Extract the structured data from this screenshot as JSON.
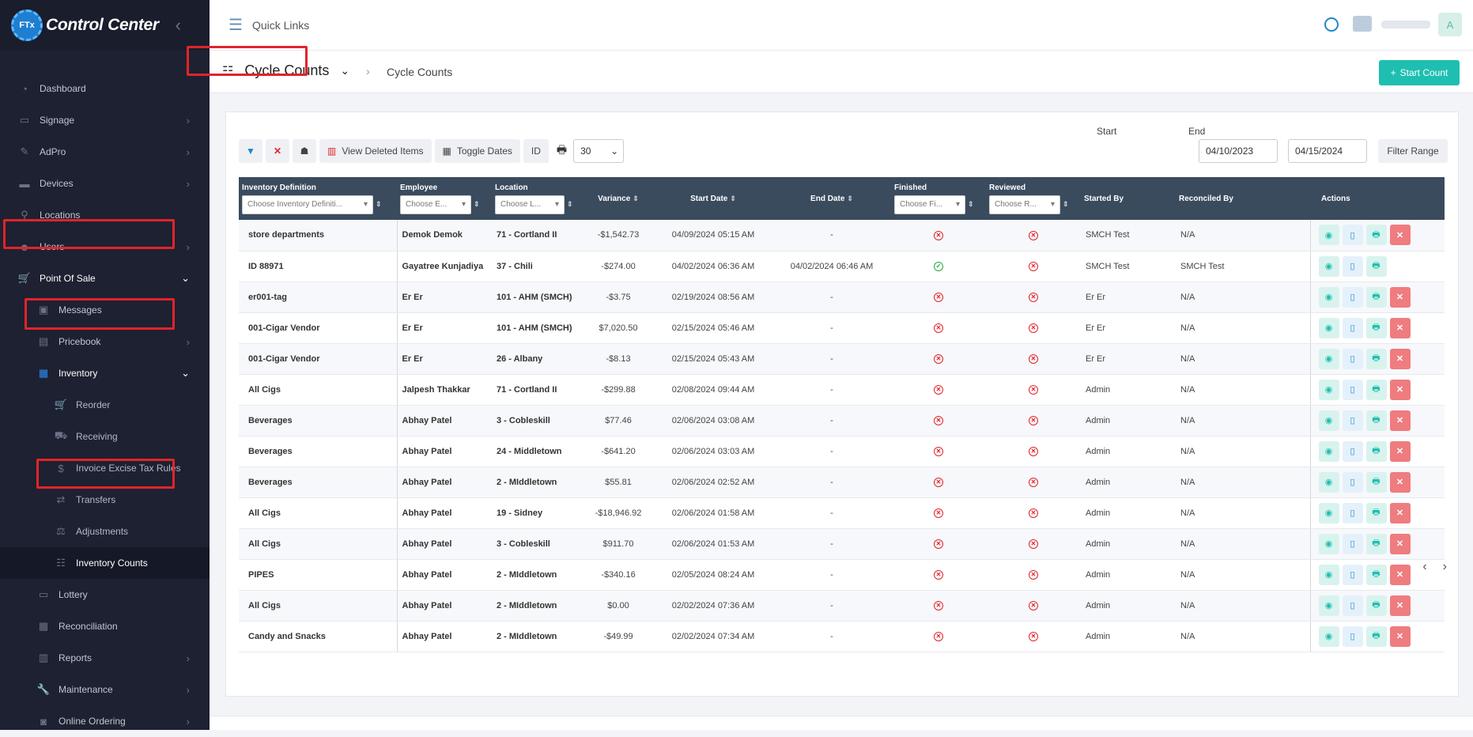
{
  "app": {
    "title": "Control Center",
    "logo_text": "FTx"
  },
  "topbar": {
    "quick_links": "Quick Links",
    "user_initial": "A"
  },
  "sidebar": {
    "items": [
      {
        "label": "Dashboard",
        "icon": "dashboard-icon",
        "glyph": "◔",
        "chev": false
      },
      {
        "label": "Signage",
        "icon": "monitor-icon",
        "glyph": "▭",
        "chev": true
      },
      {
        "label": "AdPro",
        "icon": "brush-icon",
        "glyph": "✎",
        "chev": true
      },
      {
        "label": "Devices",
        "icon": "devices-icon",
        "glyph": "▬",
        "chev": true
      },
      {
        "label": "Locations",
        "icon": "location-pin-icon",
        "glyph": "⚲",
        "chev": false
      },
      {
        "label": "Users",
        "icon": "users-icon",
        "glyph": "☻",
        "chev": true
      },
      {
        "label": "Point Of Sale",
        "icon": "cart-icon",
        "glyph": "🛒",
        "chev": "open"
      },
      {
        "label": "Messages",
        "icon": "message-icon",
        "glyph": "▣",
        "chev": false,
        "level": 1
      },
      {
        "label": "Pricebook",
        "icon": "pricebook-icon",
        "glyph": "▤",
        "chev": true,
        "level": 1
      },
      {
        "label": "Inventory",
        "icon": "inventory-icon",
        "glyph": "▦",
        "chev": "open",
        "level": 1
      },
      {
        "label": "Reorder",
        "icon": "cart-icon",
        "glyph": "🛒",
        "chev": false,
        "level": 2
      },
      {
        "label": "Receiving",
        "icon": "truck-icon",
        "glyph": "⛟",
        "chev": false,
        "level": 2
      },
      {
        "label": "Invoice Excise Tax Rules",
        "icon": "dollar-icon",
        "glyph": "$",
        "chev": false,
        "level": 2
      },
      {
        "label": "Transfers",
        "icon": "transfer-icon",
        "glyph": "⇄",
        "chev": false,
        "level": 2
      },
      {
        "label": "Adjustments",
        "icon": "scale-icon",
        "glyph": "⚖",
        "chev": false,
        "level": 2
      },
      {
        "label": "Inventory Counts",
        "icon": "counts-icon",
        "glyph": "☷",
        "chev": false,
        "level": 2,
        "current": true
      },
      {
        "label": "Lottery",
        "icon": "lottery-icon",
        "glyph": "▭",
        "chev": false,
        "level": 1
      },
      {
        "label": "Reconciliation",
        "icon": "grid-icon",
        "glyph": "▦",
        "chev": false,
        "level": 1
      },
      {
        "label": "Reports",
        "icon": "chart-icon",
        "glyph": "▥",
        "chev": true,
        "level": 1
      },
      {
        "label": "Maintenance",
        "icon": "wrench-icon",
        "glyph": "🔧",
        "chev": true,
        "level": 1
      },
      {
        "label": "Online Ordering",
        "icon": "bag-icon",
        "glyph": "◙",
        "chev": true,
        "level": 1
      }
    ]
  },
  "header": {
    "title": "Cycle Counts",
    "breadcrumb": "Cycle Counts",
    "start_count": "Start Count"
  },
  "toolbar": {
    "view_deleted": "View Deleted Items",
    "toggle_dates": "Toggle Dates",
    "id_label": "ID",
    "page_size": "30"
  },
  "range": {
    "start_label": "Start",
    "end_label": "End",
    "start_value": "04/10/2023",
    "end_value": "04/15/2024",
    "filter_label": "Filter Range"
  },
  "columns": {
    "definition": "Inventory Definition",
    "definition_placeholder": "Choose Inventory Definiti...",
    "employee": "Employee",
    "employee_placeholder": "Choose E...",
    "location": "Location",
    "location_placeholder": "Choose L...",
    "variance": "Variance",
    "start_date": "Start Date",
    "end_date": "End Date",
    "finished": "Finished",
    "finished_placeholder": "Choose Fi...",
    "reviewed": "Reviewed",
    "reviewed_placeholder": "Choose R...",
    "started_by": "Started By",
    "reconciled_by": "Reconciled By",
    "actions": "Actions"
  },
  "rows": [
    {
      "def": "store departments",
      "emp": "Demok Demok",
      "loc": "71 - Cortland II",
      "var": "-$1,542.73",
      "start": "04/09/2024 05:15 AM",
      "end": "-",
      "fin": false,
      "rev": false,
      "by": "SMCH Test",
      "rec": "N/A",
      "del": true
    },
    {
      "def": "ID 88971",
      "emp": "Gayatree Kunjadiya",
      "loc": "37 - Chili",
      "var": "-$274.00",
      "start": "04/02/2024 06:36 AM",
      "end": "04/02/2024 06:46 AM",
      "fin": true,
      "rev": false,
      "by": "SMCH Test",
      "rec": "SMCH Test",
      "del": false
    },
    {
      "def": "er001-tag",
      "emp": "Er Er",
      "loc": "101 - AHM (SMCH)",
      "var": "-$3.75",
      "start": "02/19/2024 08:56 AM",
      "end": "-",
      "fin": false,
      "rev": false,
      "by": "Er Er",
      "rec": "N/A",
      "del": true
    },
    {
      "def": "001-Cigar Vendor",
      "emp": "Er Er",
      "loc": "101 - AHM (SMCH)",
      "var": "$7,020.50",
      "start": "02/15/2024 05:46 AM",
      "end": "-",
      "fin": false,
      "rev": false,
      "by": "Er Er",
      "rec": "N/A",
      "del": true
    },
    {
      "def": "001-Cigar Vendor",
      "emp": "Er Er",
      "loc": "26 - Albany",
      "var": "-$8.13",
      "start": "02/15/2024 05:43 AM",
      "end": "-",
      "fin": false,
      "rev": false,
      "by": "Er Er",
      "rec": "N/A",
      "del": true
    },
    {
      "def": "All Cigs",
      "emp": "Jalpesh Thakkar",
      "loc": "71 - Cortland II",
      "var": "-$299.88",
      "start": "02/08/2024 09:44 AM",
      "end": "-",
      "fin": false,
      "rev": false,
      "by": "Admin",
      "rec": "N/A",
      "del": true
    },
    {
      "def": "Beverages",
      "emp": "Abhay Patel",
      "loc": "3 - Cobleskill",
      "var": "$77.46",
      "start": "02/06/2024 03:08 AM",
      "end": "-",
      "fin": false,
      "rev": false,
      "by": "Admin",
      "rec": "N/A",
      "del": true
    },
    {
      "def": "Beverages",
      "emp": "Abhay Patel",
      "loc": "24 - Middletown",
      "var": "-$641.20",
      "start": "02/06/2024 03:03 AM",
      "end": "-",
      "fin": false,
      "rev": false,
      "by": "Admin",
      "rec": "N/A",
      "del": true
    },
    {
      "def": "Beverages",
      "emp": "Abhay Patel",
      "loc": "2 - MIddletown",
      "var": "$55.81",
      "start": "02/06/2024 02:52 AM",
      "end": "-",
      "fin": false,
      "rev": false,
      "by": "Admin",
      "rec": "N/A",
      "del": true
    },
    {
      "def": "All Cigs",
      "emp": "Abhay Patel",
      "loc": "19 - Sidney",
      "var": "-$18,946.92",
      "start": "02/06/2024 01:58 AM",
      "end": "-",
      "fin": false,
      "rev": false,
      "by": "Admin",
      "rec": "N/A",
      "del": true
    },
    {
      "def": "All Cigs",
      "emp": "Abhay Patel",
      "loc": "3 - Cobleskill",
      "var": "$911.70",
      "start": "02/06/2024 01:53 AM",
      "end": "-",
      "fin": false,
      "rev": false,
      "by": "Admin",
      "rec": "N/A",
      "del": true
    },
    {
      "def": "PIPES",
      "emp": "Abhay Patel",
      "loc": "2 - MIddletown",
      "var": "-$340.16",
      "start": "02/05/2024 08:24 AM",
      "end": "-",
      "fin": false,
      "rev": false,
      "by": "Admin",
      "rec": "N/A",
      "del": true
    },
    {
      "def": "All Cigs",
      "emp": "Abhay Patel",
      "loc": "2 - MIddletown",
      "var": "$0.00",
      "start": "02/02/2024 07:36 AM",
      "end": "-",
      "fin": false,
      "rev": false,
      "by": "Admin",
      "rec": "N/A",
      "del": true
    },
    {
      "def": "Candy and Snacks",
      "emp": "Abhay Patel",
      "loc": "2 - MIddletown",
      "var": "-$49.99",
      "start": "02/02/2024 07:34 AM",
      "end": "-",
      "fin": false,
      "rev": false,
      "by": "Admin",
      "rec": "N/A",
      "del": true
    }
  ],
  "colors": {
    "accent": "#1ebfb0",
    "highlight": "#e0242b",
    "header_bg": "#3a4b5e",
    "sidebar_bg": "#1e2131"
  }
}
